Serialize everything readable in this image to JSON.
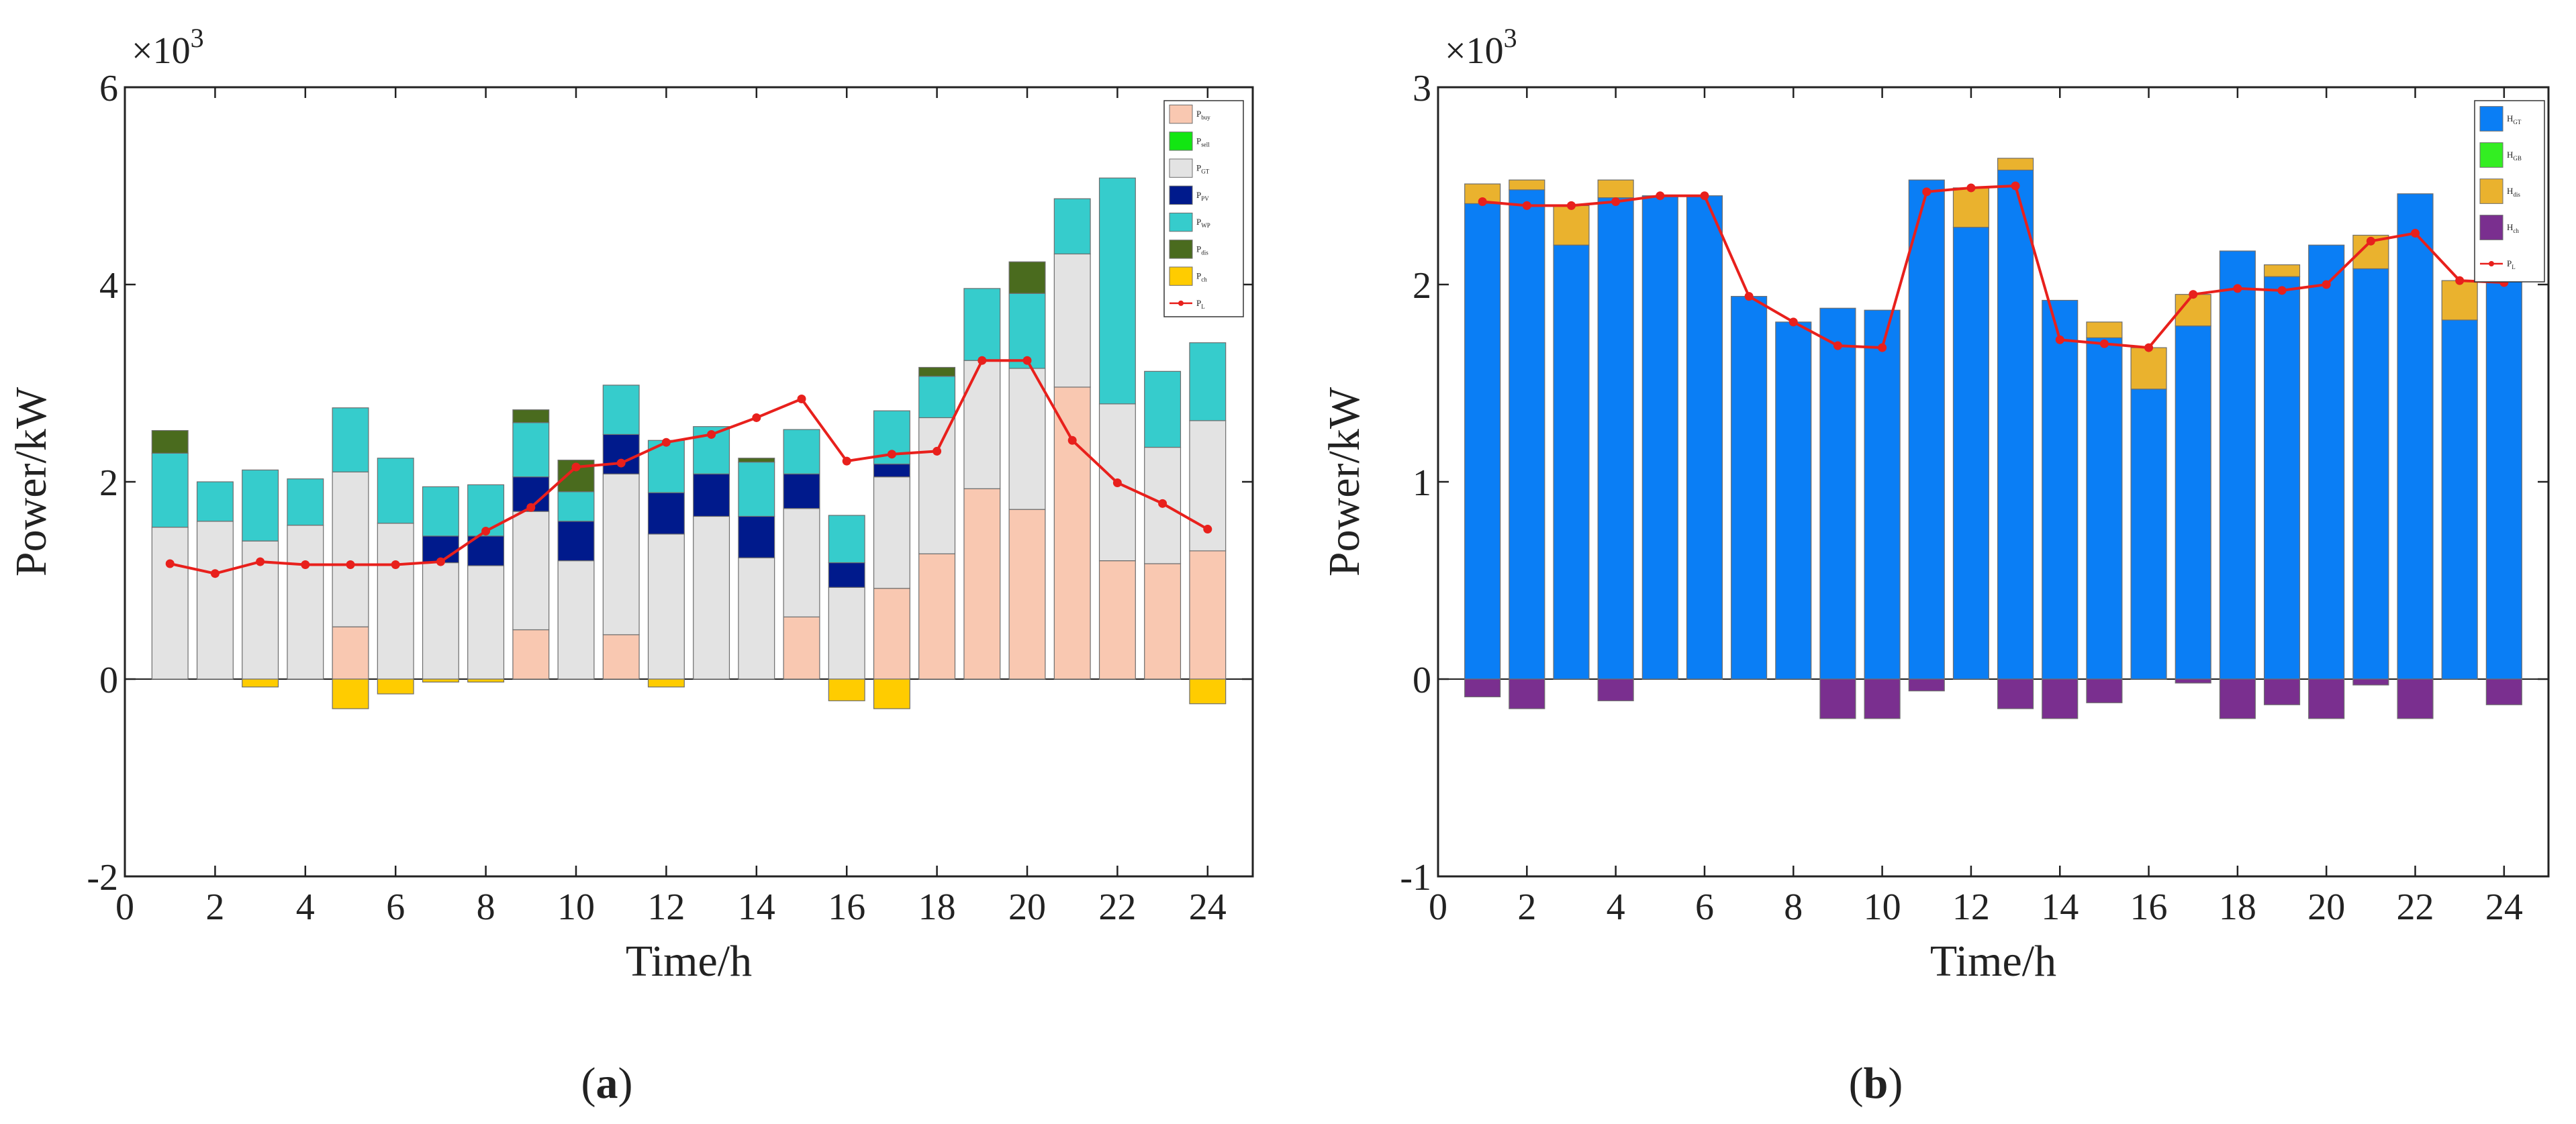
{
  "figure": {
    "captions": [
      "(a)",
      "(b)"
    ]
  },
  "chart_data": [
    {
      "type": "bar",
      "stacked": true,
      "panel_label": "a",
      "scale_label": "×10",
      "scale_exp": "3",
      "xlabel": "Time/h",
      "ylabel": "Power/kW",
      "xlim": [
        0,
        25
      ],
      "ylim": [
        -2000,
        6000
      ],
      "xticks": [
        0,
        2,
        4,
        6,
        8,
        10,
        12,
        14,
        16,
        18,
        20,
        22,
        24
      ],
      "yticks": [
        -2000,
        0,
        2000,
        4000,
        6000
      ],
      "ytick_labels": [
        "-2",
        "0",
        "2",
        "4",
        "6"
      ],
      "grid": false,
      "legend_position": "top-right",
      "categories": [
        1,
        2,
        3,
        4,
        5,
        6,
        7,
        8,
        9,
        10,
        11,
        12,
        13,
        14,
        15,
        16,
        17,
        18,
        19,
        20,
        21,
        22,
        23,
        24
      ],
      "series": [
        {
          "name": "Pbuy",
          "base": "P",
          "sub": "buy",
          "color": "#f9c8b1",
          "values": [
            0,
            0,
            0,
            0,
            530,
            0,
            0,
            0,
            500,
            0,
            450,
            0,
            0,
            0,
            630,
            0,
            920,
            1270,
            1930,
            1720,
            2960,
            1200,
            1170,
            1300
          ]
        },
        {
          "name": "Psell",
          "base": "P",
          "sub": "sell",
          "color": "#12e612",
          "values": [
            0,
            0,
            0,
            0,
            0,
            0,
            0,
            0,
            0,
            0,
            0,
            0,
            0,
            0,
            0,
            0,
            0,
            0,
            0,
            0,
            0,
            0,
            0,
            0
          ]
        },
        {
          "name": "PGT",
          "base": "P",
          "sub": "GT",
          "color": "#e3e3e3",
          "values": [
            1540,
            1600,
            1400,
            1560,
            1570,
            1580,
            1180,
            1150,
            1200,
            1200,
            1630,
            1470,
            1650,
            1230,
            1100,
            930,
            1130,
            1380,
            1300,
            1430,
            1350,
            1590,
            1180,
            1320
          ]
        },
        {
          "name": "PPV",
          "base": "P",
          "sub": "PV",
          "color": "#001a8c",
          "values": [
            0,
            0,
            0,
            0,
            0,
            0,
            270,
            300,
            350,
            400,
            400,
            420,
            430,
            420,
            350,
            250,
            130,
            0,
            0,
            0,
            0,
            0,
            0,
            0
          ]
        },
        {
          "name": "PWP",
          "base": "P",
          "sub": "WP",
          "color": "#36cccc",
          "values": [
            750,
            400,
            720,
            470,
            650,
            660,
            500,
            520,
            550,
            300,
            500,
            530,
            480,
            550,
            450,
            480,
            540,
            420,
            730,
            760,
            560,
            2290,
            770,
            790
          ]
        },
        {
          "name": "Pdis",
          "base": "P",
          "sub": "dis",
          "color": "#4a6b1e",
          "values": [
            230,
            0,
            0,
            0,
            0,
            0,
            0,
            0,
            130,
            320,
            0,
            0,
            0,
            40,
            0,
            0,
            0,
            90,
            0,
            320,
            0,
            0,
            0,
            0
          ]
        },
        {
          "name": "Pch",
          "base": "P",
          "sub": "ch",
          "color": "#ffcc00",
          "values": [
            0,
            0,
            -80,
            0,
            -300,
            -150,
            -30,
            -30,
            0,
            0,
            0,
            -80,
            0,
            0,
            0,
            -220,
            -300,
            0,
            0,
            0,
            0,
            0,
            0,
            -250
          ]
        }
      ],
      "line_series": {
        "name": "PL",
        "base": "P",
        "sub": "L",
        "color": "#e8201c",
        "values": [
          1170,
          1070,
          1190,
          1160,
          1160,
          1160,
          1190,
          1500,
          1740,
          2150,
          2190,
          2400,
          2480,
          2650,
          2840,
          2210,
          2280,
          2310,
          3230,
          3230,
          2420,
          1990,
          1780,
          1520
        ]
      }
    },
    {
      "type": "bar",
      "stacked": true,
      "panel_label": "b",
      "scale_label": "×10",
      "scale_exp": "3",
      "xlabel": "Time/h",
      "ylabel": "Power/kW",
      "xlim": [
        0,
        25
      ],
      "ylim": [
        -1000,
        3000
      ],
      "xticks": [
        0,
        2,
        4,
        6,
        8,
        10,
        12,
        14,
        16,
        18,
        20,
        22,
        24
      ],
      "yticks": [
        -1000,
        0,
        1000,
        2000,
        3000
      ],
      "ytick_labels": [
        "-1",
        "0",
        "1",
        "2",
        "3"
      ],
      "grid": false,
      "legend_position": "top-right",
      "categories": [
        1,
        2,
        3,
        4,
        5,
        6,
        7,
        8,
        9,
        10,
        11,
        12,
        13,
        14,
        15,
        16,
        17,
        18,
        19,
        20,
        21,
        22,
        23,
        24
      ],
      "series": [
        {
          "name": "HGT",
          "base": "H",
          "sub": "GT",
          "color": "#0a7ef5",
          "values": [
            2410,
            2480,
            2200,
            2440,
            2450,
            2450,
            1940,
            1810,
            1880,
            1870,
            2530,
            2290,
            2580,
            1920,
            1730,
            1470,
            1790,
            2170,
            2040,
            2200,
            2080,
            2460,
            1820,
            2060
          ]
        },
        {
          "name": "HGB",
          "base": "H",
          "sub": "GB",
          "color": "#33ee22",
          "values": [
            0,
            0,
            0,
            0,
            0,
            0,
            0,
            0,
            0,
            0,
            0,
            0,
            0,
            0,
            0,
            0,
            0,
            0,
            0,
            0,
            0,
            0,
            0,
            0
          ]
        },
        {
          "name": "Hdis",
          "base": "H",
          "sub": "dis",
          "color": "#eab22e",
          "values": [
            100,
            50,
            200,
            90,
            0,
            0,
            0,
            0,
            0,
            0,
            0,
            200,
            60,
            0,
            80,
            210,
            160,
            0,
            60,
            0,
            170,
            0,
            200,
            70
          ]
        },
        {
          "name": "Hch",
          "base": "H",
          "sub": "ch",
          "color": "#7a2f8f",
          "values": [
            -90,
            -150,
            0,
            -110,
            0,
            0,
            0,
            0,
            -200,
            -200,
            -60,
            0,
            -150,
            -200,
            -120,
            0,
            -20,
            -200,
            -130,
            -200,
            -30,
            -200,
            0,
            -130
          ]
        }
      ],
      "line_series": {
        "name": "PL",
        "base": "P",
        "sub": "L",
        "color": "#e8201c",
        "values": [
          2420,
          2400,
          2400,
          2420,
          2450,
          2450,
          1940,
          1810,
          1690,
          1680,
          2470,
          2490,
          2500,
          1720,
          1700,
          1680,
          1950,
          1980,
          1970,
          2000,
          2220,
          2260,
          2020,
          2010
        ]
      }
    }
  ]
}
